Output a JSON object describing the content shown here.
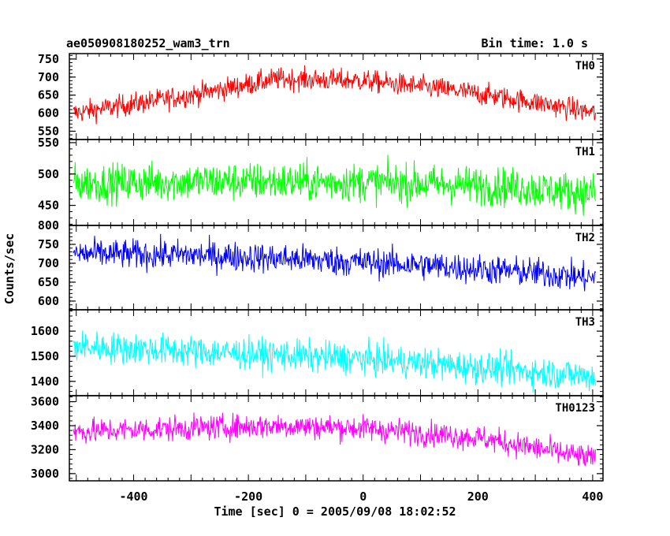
{
  "header": {
    "title_left": "ae050908180252_wam3_trn",
    "title_right": "Bin time: 1.0 s"
  },
  "axes": {
    "xlabel": "Time [sec] 0 = 2005/09/08 18:02:52",
    "ylabel": "Counts/sec"
  },
  "chart_data": {
    "type": "line",
    "title": "ae050908180252_wam3_trn",
    "xlabel": "Time [sec] 0 = 2005/09/08 18:02:52",
    "ylabel": "Counts/sec",
    "xlim": [
      -512,
      418
    ],
    "xticks": [
      -400,
      -200,
      0,
      200,
      400
    ],
    "grid": false,
    "panels": [
      {
        "name": "TH0",
        "color": "#ff0000",
        "ylim": [
          527,
          765
        ],
        "yticks": [
          550,
          600,
          650,
          700,
          750
        ],
        "trend_x": [
          -505,
          -300,
          -150,
          0,
          150,
          300,
          405
        ],
        "trend_y": [
          600,
          650,
          695,
          690,
          665,
          630,
          600
        ],
        "noise": 22
      },
      {
        "name": "TH1",
        "color": "#00ff00",
        "ylim": [
          418,
          555
        ],
        "yticks": [
          450,
          500,
          550
        ],
        "trend_x": [
          -505,
          -300,
          0,
          200,
          405
        ],
        "trend_y": [
          485,
          488,
          487,
          482,
          470
        ],
        "noise": 22
      },
      {
        "name": "TH2",
        "color": "#0000ff",
        "ylim": [
          577,
          800
        ],
        "yticks": [
          600,
          650,
          700,
          750,
          800
        ],
        "trend_x": [
          -505,
          -300,
          -100,
          100,
          300,
          405
        ],
        "trend_y": [
          725,
          722,
          710,
          695,
          675,
          660
        ],
        "noise": 28
      },
      {
        "name": "TH3",
        "color": "#00ffff",
        "ylim": [
          1343,
          1685
        ],
        "yticks": [
          1400,
          1500,
          1600
        ],
        "trend_x": [
          -505,
          -300,
          0,
          200,
          405
        ],
        "trend_y": [
          1540,
          1520,
          1490,
          1455,
          1420
        ],
        "noise": 45
      },
      {
        "name": "TH0123",
        "color": "#ff00ff",
        "ylim": [
          2940,
          3650
        ],
        "yticks": [
          3000,
          3200,
          3400,
          3600
        ],
        "trend_x": [
          -505,
          -300,
          -150,
          0,
          200,
          405
        ],
        "trend_y": [
          3350,
          3380,
          3400,
          3380,
          3300,
          3120
        ],
        "noise": 75
      }
    ]
  }
}
